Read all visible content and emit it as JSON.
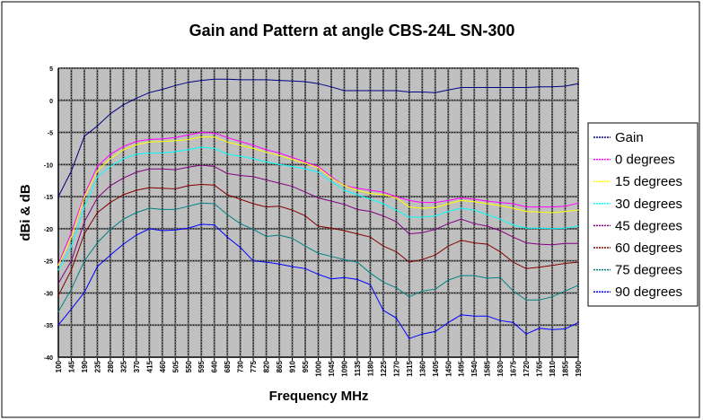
{
  "chart_data": {
    "type": "line",
    "title": "Gain and Pattern at angle CBS-24L SN-300",
    "xlabel": "Frequency MHz",
    "ylabel": "dBi & dB",
    "ylim": [
      -40,
      5
    ],
    "yticks": [
      5,
      0,
      -5,
      -10,
      -15,
      -20,
      -25,
      -30,
      -35,
      -40
    ],
    "grid": true,
    "legend_position": "right",
    "categories": [
      "100",
      "145",
      "190",
      "235",
      "280",
      "325",
      "370",
      "415",
      "460",
      "505",
      "550",
      "595",
      "640",
      "685",
      "730",
      "775",
      "820",
      "865",
      "910",
      "955",
      "1000",
      "1045",
      "1090",
      "1135",
      "1180",
      "1225",
      "1270",
      "1315",
      "1360",
      "1405",
      "1450",
      "1495",
      "1540",
      "1585",
      "1630",
      "1675",
      "1720",
      "1765",
      "1810",
      "1855",
      "1900"
    ],
    "series": [
      {
        "name": "Gain",
        "color": "#000080",
        "values": [
          -15,
          -11,
          -5.6,
          -4.0,
          -2.1,
          -0.7,
          0.3,
          1.2,
          1.7,
          2.3,
          2.8,
          3.1,
          3.3,
          3.3,
          3.2,
          3.2,
          3.2,
          3.1,
          3.0,
          2.9,
          2.6,
          2.1,
          1.5,
          1.5,
          1.5,
          1.5,
          1.5,
          1.3,
          1.3,
          1.2,
          1.6,
          2.0,
          2.0,
          2.0,
          2.0,
          2.0,
          2.0,
          2.1,
          2.1,
          2.2,
          2.6
        ]
      },
      {
        "name": "0 degrees",
        "color": "#FF00FF",
        "values": [
          -25.5,
          -20.6,
          -14.7,
          -10.3,
          -8.4,
          -7.2,
          -6.4,
          -6.1,
          -6.0,
          -5.8,
          -5.4,
          -5.0,
          -5.1,
          -5.8,
          -6.4,
          -7.0,
          -7.7,
          -8.2,
          -8.9,
          -9.6,
          -10.3,
          -11.9,
          -13.3,
          -13.7,
          -14.0,
          -14.3,
          -15.0,
          -15.6,
          -15.9,
          -15.9,
          -15.6,
          -15.2,
          -15.4,
          -15.7,
          -15.9,
          -16.1,
          -16.6,
          -16.6,
          -16.6,
          -16.5,
          -16.0
        ]
      },
      {
        "name": "15 degrees",
        "color": "#FFFF00",
        "values": [
          -25.7,
          -21.3,
          -15.0,
          -11.0,
          -9.1,
          -7.7,
          -6.9,
          -6.5,
          -6.4,
          -6.3,
          -6.1,
          -5.7,
          -5.7,
          -6.5,
          -7.0,
          -7.5,
          -8.1,
          -8.6,
          -9.2,
          -9.8,
          -10.5,
          -12.1,
          -13.3,
          -14.0,
          -14.5,
          -14.7,
          -15.2,
          -16.6,
          -16.8,
          -16.7,
          -16.1,
          -15.6,
          -15.8,
          -16.1,
          -16.4,
          -16.8,
          -17.3,
          -17.4,
          -17.5,
          -17.3,
          -17.1
        ]
      },
      {
        "name": "30 degrees",
        "color": "#00FFFF",
        "values": [
          -26.4,
          -22.7,
          -16.6,
          -11.9,
          -10.3,
          -9.1,
          -8.4,
          -8.2,
          -8.2,
          -8.0,
          -7.7,
          -7.3,
          -7.5,
          -8.4,
          -8.7,
          -9.1,
          -9.6,
          -10.0,
          -10.3,
          -10.7,
          -11.2,
          -12.6,
          -14.0,
          -14.7,
          -15.4,
          -16.1,
          -17.1,
          -18.2,
          -18.2,
          -18.0,
          -17.3,
          -16.8,
          -17.1,
          -17.8,
          -18.5,
          -19.4,
          -19.9,
          -19.9,
          -20.0,
          -19.9,
          -19.6
        ]
      },
      {
        "name": "45 degrees",
        "color": "#800080",
        "values": [
          -28.5,
          -25.0,
          -18.9,
          -15.2,
          -13.3,
          -12.1,
          -11.2,
          -10.7,
          -10.7,
          -10.8,
          -10.4,
          -10.1,
          -10.3,
          -11.4,
          -11.7,
          -11.9,
          -12.4,
          -12.9,
          -13.4,
          -14.3,
          -15.2,
          -15.7,
          -16.2,
          -17.0,
          -17.3,
          -18.0,
          -18.9,
          -20.8,
          -20.6,
          -20.1,
          -19.2,
          -18.5,
          -19.2,
          -19.6,
          -20.3,
          -21.3,
          -22.2,
          -22.4,
          -22.5,
          -22.3,
          -22.3
        ]
      },
      {
        "name": "60 degrees",
        "color": "#800000",
        "values": [
          -30.4,
          -26.4,
          -20.8,
          -17.5,
          -15.9,
          -14.7,
          -14.0,
          -13.6,
          -13.7,
          -13.8,
          -13.3,
          -13.1,
          -13.2,
          -14.7,
          -15.4,
          -16.1,
          -16.6,
          -16.5,
          -17.1,
          -18.0,
          -19.6,
          -19.9,
          -20.3,
          -20.8,
          -21.3,
          -22.7,
          -23.6,
          -25.2,
          -24.8,
          -24.1,
          -22.7,
          -21.8,
          -22.2,
          -22.4,
          -23.6,
          -25.2,
          -26.2,
          -26.0,
          -25.7,
          -25.4,
          -25.2
        ]
      },
      {
        "name": "75 degrees",
        "color": "#008080",
        "values": [
          -32.9,
          -29.4,
          -25.0,
          -22.2,
          -20.1,
          -18.5,
          -17.5,
          -16.8,
          -17.0,
          -17.0,
          -16.5,
          -16.0,
          -16.1,
          -17.8,
          -19.2,
          -20.1,
          -21.2,
          -21.0,
          -21.5,
          -22.7,
          -23.8,
          -24.3,
          -24.8,
          -25.2,
          -26.9,
          -28.3,
          -29.2,
          -30.6,
          -29.7,
          -29.4,
          -28.0,
          -27.3,
          -27.3,
          -27.7,
          -27.6,
          -29.7,
          -31.1,
          -31.1,
          -30.6,
          -29.7,
          -28.8
        ]
      },
      {
        "name": "90 degrees",
        "color": "#0000FF",
        "values": [
          -35.0,
          -32.5,
          -29.9,
          -25.9,
          -24.1,
          -22.4,
          -21.0,
          -20.0,
          -20.3,
          -20.2,
          -19.9,
          -19.3,
          -19.4,
          -21.3,
          -22.9,
          -25.0,
          -25.2,
          -25.5,
          -25.9,
          -26.2,
          -27.1,
          -27.8,
          -27.6,
          -27.9,
          -28.7,
          -32.7,
          -33.9,
          -37.1,
          -36.4,
          -36.0,
          -34.6,
          -33.4,
          -33.6,
          -33.6,
          -34.3,
          -34.6,
          -36.4,
          -35.5,
          -35.7,
          -35.6,
          -34.6
        ]
      }
    ]
  }
}
